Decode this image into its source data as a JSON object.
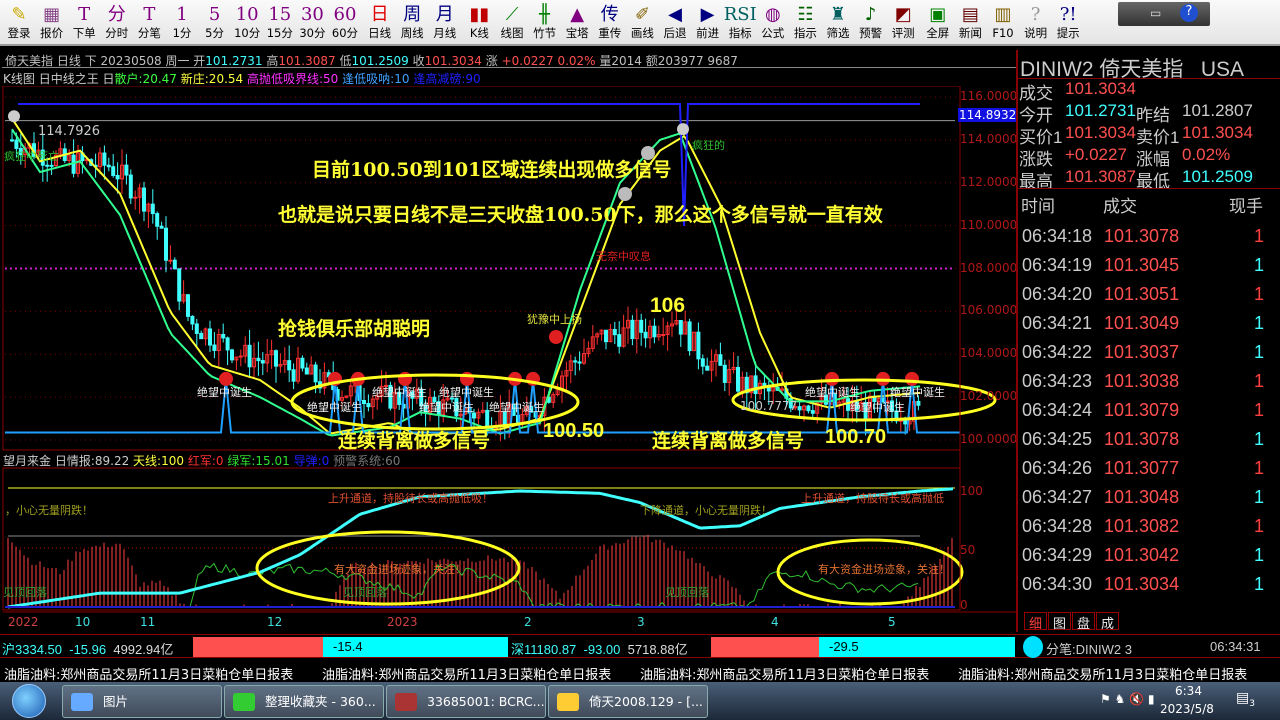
{
  "toolbar": {
    "items": [
      {
        "g": "✎",
        "l": "登录",
        "c": "#c8a800"
      },
      {
        "g": "▦",
        "l": "报价",
        "c": "#884488"
      },
      {
        "g": "T",
        "l": "下单",
        "c": "#800080"
      },
      {
        "g": "分",
        "l": "分时",
        "c": "#800080"
      },
      {
        "g": "T",
        "l": "分笔",
        "c": "#800080"
      },
      {
        "g": "1",
        "l": "1分",
        "c": "#800080"
      },
      {
        "g": "5",
        "l": "5分",
        "c": "#800080"
      },
      {
        "g": "10",
        "l": "10分",
        "c": "#800080"
      },
      {
        "g": "15",
        "l": "15分",
        "c": "#800080"
      },
      {
        "g": "30",
        "l": "30分",
        "c": "#800080"
      },
      {
        "g": "60",
        "l": "60分",
        "c": "#800080"
      },
      {
        "g": "日",
        "l": "日线",
        "c": "#e00000"
      },
      {
        "g": "周",
        "l": "周线",
        "c": "#000080"
      },
      {
        "g": "月",
        "l": "月线",
        "c": "#000080"
      },
      {
        "g": "▮▮",
        "l": "K线",
        "c": "#c00000"
      },
      {
        "g": "⟋",
        "l": "线图",
        "c": "#008000"
      },
      {
        "g": "╫",
        "l": "竹节",
        "c": "#008000"
      },
      {
        "g": "▲",
        "l": "宝塔",
        "c": "#800080"
      },
      {
        "g": "传",
        "l": "重传",
        "c": "#000080"
      },
      {
        "g": "✐",
        "l": "画线",
        "c": "#806000"
      },
      {
        "g": "◀",
        "l": "后退",
        "c": "#000080"
      },
      {
        "g": "▶",
        "l": "前进",
        "c": "#000080"
      },
      {
        "g": "RSI",
        "l": "指标",
        "c": "#006060"
      },
      {
        "g": "◍",
        "l": "公式",
        "c": "#800080"
      },
      {
        "g": "☷",
        "l": "指示",
        "c": "#006000"
      },
      {
        "g": "♜",
        "l": "筛选",
        "c": "#006060"
      },
      {
        "g": "♪",
        "l": "预警",
        "c": "#006000"
      },
      {
        "g": "◩",
        "l": "评测",
        "c": "#800000"
      },
      {
        "g": "▣",
        "l": "全屏",
        "c": "#008000"
      },
      {
        "g": "▤",
        "l": "新闻",
        "c": "#600000"
      },
      {
        "g": "▥",
        "l": "F10",
        "c": "#806000"
      },
      {
        "g": "?",
        "l": "说明",
        "c": "#999999"
      },
      {
        "g": "?!",
        "l": "提示",
        "c": "#000080"
      }
    ]
  },
  "info": {
    "name": "倚天美指",
    "period": "日线",
    "dir": "下",
    "date": "20230508",
    "weekday": "周一",
    "open_l": "开",
    "open": "101.2731",
    "high_l": "高",
    "high": "101.3087",
    "low_l": "低",
    "low": "101.2509",
    "close_l": "收",
    "close": "101.3034",
    "chg_l": "涨",
    "chg": "+0.0227",
    "pct": "0.02%",
    "vol": "量2014",
    "amt": "额203977",
    "extra": "9687"
  },
  "indicator": {
    "name": "K线图",
    "formula": "日中线之王 日",
    "a": "散户:20.47",
    "b": "新庄:20.54",
    "c": "高抛低吸界线:50",
    "d": "逢低吸呐:10",
    "e": "逢高减磅:90"
  },
  "chart": {
    "yaxis": [
      "116.0000",
      "114.0000",
      "112.0000",
      "110.0000",
      "108.0000",
      "106.0000",
      "104.0000",
      "102.0000",
      "100.0000"
    ],
    "current": "114.8932",
    "peak_label": "114.7926",
    "low_label": "100.7777",
    "notes": {
      "n1": "目前100.50到101区域连续出现做多信号",
      "n2": "也就是说只要日线不是三天收盘100.50下，那么这个多信号就一直有效",
      "n3": "抢钱俱乐部胡聪明",
      "n4": "106",
      "n5": "100.50",
      "n6": "100.70",
      "n7": "连续背离做多信号",
      "n8": "连续背离做多信号",
      "sigh": "无奈中叹息",
      "hesit": "犹豫中上扬",
      "crazy": "疯狂中死亡",
      "tl": "疯狂的",
      "signal": "绝望中诞生"
    }
  },
  "sub": {
    "name": "望月来金 日情报:89.22",
    "a": "天线:100",
    "b": "红军:0",
    "c": "绿军:15.01",
    "d": "导弹:0",
    "e": "预警系统:60",
    "yaxis": [
      "100",
      "50",
      "0"
    ],
    "t1": "，小心无量阴跌！",
    "t2": "上升通道，持股待长或高抛低吸！",
    "t3": "下降通道，小心无量阴跌！",
    "t4": "上升通道，持股待长或高抛低",
    "t5": "有大资金进场迹象，关注！",
    "t6": "有大资金进场迹象，关注！",
    "t7": "见顶回落",
    "t8": "见顶回落",
    "t9": "见顶回落"
  },
  "dates": [
    "2022",
    "10",
    "11",
    "12",
    "2023",
    "2",
    "3",
    "4",
    "5"
  ],
  "quote": {
    "title": "DINIW2 倚天美指",
    "market": "USA",
    "last_l": "成交",
    "last": "101.3034",
    "open_l": "今开",
    "open": "101.2731",
    "prev_l": "昨结",
    "prev": "101.2807",
    "bid_l": "买价1",
    "bid": "101.3034",
    "ask_l": "卖价1",
    "ask": "101.3034",
    "chg_l": "涨跌",
    "chg": "+0.0227",
    "pct_l": "涨幅",
    "pct": "0.02%",
    "high_l": "最高",
    "high": "101.3087",
    "low_l": "最低",
    "low": "101.2509",
    "h_time": "时间",
    "h_price": "成交",
    "h_vol": "现手",
    "trades": [
      [
        "06:34:18",
        "101.3078",
        "1",
        "r"
      ],
      [
        "06:34:19",
        "101.3045",
        "1",
        "c"
      ],
      [
        "06:34:20",
        "101.3051",
        "1",
        "r"
      ],
      [
        "06:34:21",
        "101.3049",
        "1",
        "c"
      ],
      [
        "06:34:22",
        "101.3037",
        "1",
        "c"
      ],
      [
        "06:34:23",
        "101.3038",
        "1",
        "r"
      ],
      [
        "06:34:24",
        "101.3079",
        "1",
        "r"
      ],
      [
        "06:34:25",
        "101.3078",
        "1",
        "c"
      ],
      [
        "06:34:26",
        "101.3077",
        "1",
        "r"
      ],
      [
        "06:34:27",
        "101.3048",
        "1",
        "c"
      ],
      [
        "06:34:28",
        "101.3082",
        "1",
        "r"
      ],
      [
        "06:34:29",
        "101.3042",
        "1",
        "c"
      ],
      [
        "06:34:30",
        "101.3034",
        "1",
        "c"
      ]
    ],
    "tabs": [
      "细",
      "图",
      "盘",
      "成"
    ]
  },
  "status": {
    "sh": "沪3334.50",
    "sh_chg": "-15.96",
    "sh_amt": "4992.94亿",
    "sh_bar": "-15.4",
    "sz": "深11180.87",
    "sz_chg": "-93.00",
    "sz_amt": "5718.88亿",
    "sz_bar": "-29.5",
    "fenbi": "分笔:DINIW2 3",
    "time": "06:34:31"
  },
  "ticker": "油脂油料:郑州商品交易所11月3日菜粕仓单日报表",
  "taskbar": {
    "tasks": [
      "图片",
      "整理收藏夹 - 360...",
      "33685001: BCRC...",
      "倚天2008.129 - [..."
    ],
    "time": "6:34",
    "date": "2023/5/8",
    "notif": "3"
  },
  "colors": {
    "up": "#ff4040",
    "down": "#40ffff",
    "accent": "#ffff33"
  }
}
